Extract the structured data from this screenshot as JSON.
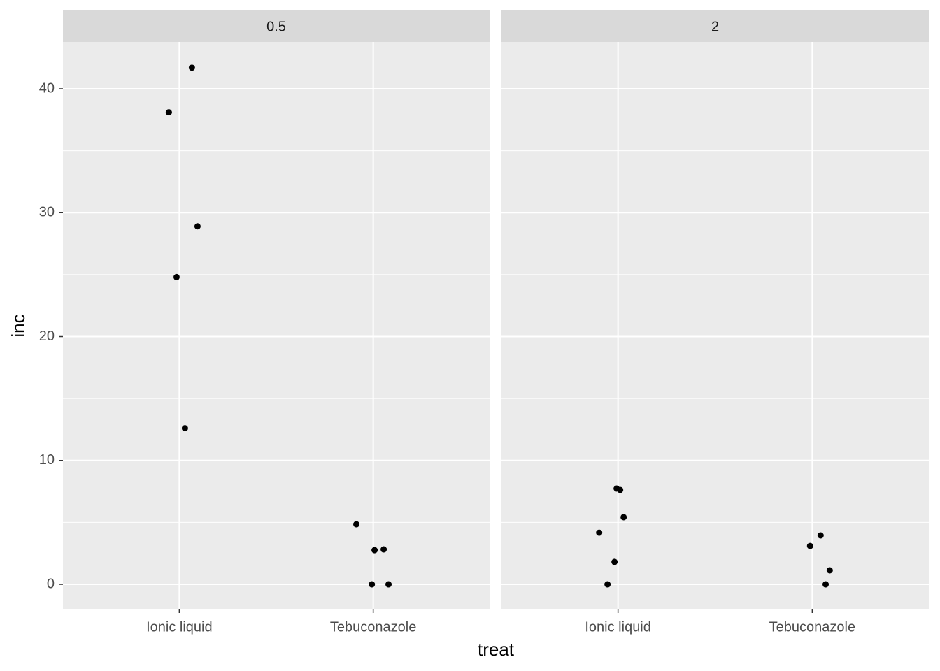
{
  "chart_data": [
    {
      "type": "scatter",
      "title": "0.5",
      "xlabel": "treat",
      "ylabel": "inc",
      "x": [
        1.065,
        0.946,
        1.094,
        0.986,
        1.029,
        1.913,
        2.007,
        2.054,
        1.993,
        2.079
      ],
      "values": [
        41.7,
        38.1,
        28.9,
        24.8,
        12.6,
        4.85,
        2.76,
        2.82,
        0,
        0
      ],
      "xlim": [
        0.4,
        2.6
      ],
      "ylim": [
        -2.03,
        43.78
      ],
      "xticks": [
        {
          "value": 1,
          "label": "Ionic liquid"
        },
        {
          "value": 2,
          "label": "Tebuconazole"
        }
      ],
      "yticks": [
        0,
        10,
        20,
        30,
        40
      ],
      "color": "#000000",
      "grid": true
    },
    {
      "type": "scatter",
      "title": "2",
      "x": [
        0.993,
        1.011,
        1.029,
        0.903,
        0.982,
        0.946,
        2.043,
        1.989,
        2.09,
        2.069
      ],
      "values": [
        7.73,
        7.62,
        5.42,
        4.17,
        1.81,
        0,
        3.95,
        3.1,
        1.13,
        0
      ],
      "xlim": [
        0.4,
        2.6
      ],
      "ylim": [
        -2.03,
        43.78
      ],
      "xticks": [
        {
          "value": 1,
          "label": "Ionic liquid"
        },
        {
          "value": 2,
          "label": "Tebuconazole"
        }
      ],
      "yticks": [
        0,
        10,
        20,
        30,
        40
      ],
      "color": "#000000",
      "grid": true
    }
  ]
}
